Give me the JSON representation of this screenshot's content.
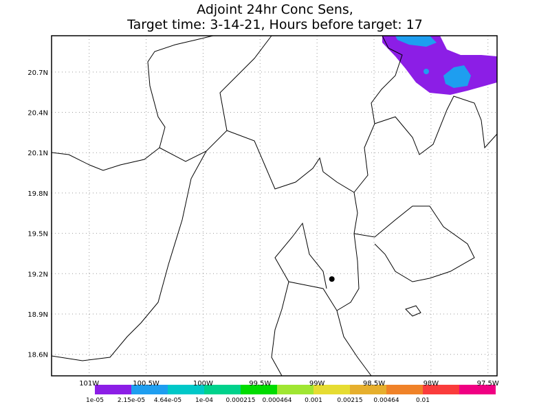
{
  "title": [
    "Adjoint 24hr Conc Sens,",
    "Target time: 3-14-21, Hours before target: 17"
  ],
  "map": {
    "xlim": [
      -101.33,
      -97.42
    ],
    "ylim": [
      18.44,
      20.97
    ],
    "xticks": [
      {
        "value": -101,
        "label": "101W"
      },
      {
        "value": -100.5,
        "label": "100.5W"
      },
      {
        "value": -100,
        "label": "100W"
      },
      {
        "value": -99.5,
        "label": "99.5W"
      },
      {
        "value": -99,
        "label": "99W"
      },
      {
        "value": -98.5,
        "label": "98.5W"
      },
      {
        "value": -98,
        "label": "98W"
      },
      {
        "value": -97.5,
        "label": "97.5W"
      }
    ],
    "yticks": [
      {
        "value": 18.6,
        "label": "18.6N"
      },
      {
        "value": 18.9,
        "label": "18.9N"
      },
      {
        "value": 19.2,
        "label": "19.2N"
      },
      {
        "value": 19.5,
        "label": "19.5N"
      },
      {
        "value": 19.8,
        "label": "19.8N"
      },
      {
        "value": 20.1,
        "label": "20.1N"
      },
      {
        "value": 20.4,
        "label": "20.4N"
      },
      {
        "value": 20.7,
        "label": "20.7N"
      }
    ],
    "grid": true,
    "marker": {
      "lon": -98.87,
      "lat": 19.16
    }
  },
  "colorbar": {
    "colors": [
      "#8c1ee6",
      "#1e9ef0",
      "#00c8c8",
      "#00d28c",
      "#00dc00",
      "#a0e632",
      "#e6dc32",
      "#e6af2d",
      "#f08228",
      "#fa3c3c",
      "#f00082"
    ],
    "labels": [
      "1e-05",
      "2.15e-05",
      "4.64e-05",
      "1e-04",
      "0.000215",
      "0.000464",
      "0.001",
      "0.00215",
      "0.00464",
      "0.01"
    ]
  }
}
